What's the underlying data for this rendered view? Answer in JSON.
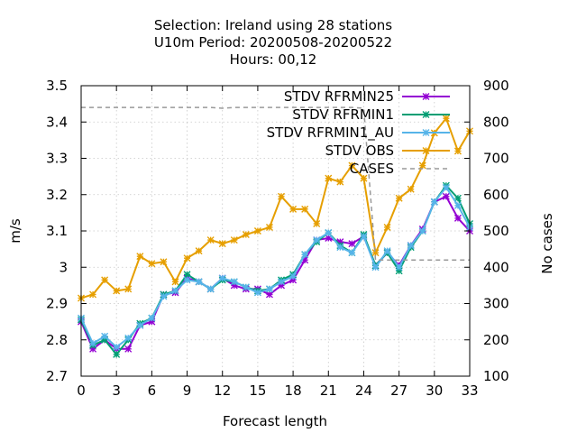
{
  "chart_data": {
    "type": "line",
    "title_lines": [
      "Selection: Ireland using    28 stations",
      "U10m   Period: 20200508-20200522",
      "Hours:  00,12"
    ],
    "xlabel": "Forecast length",
    "ylabel": "m/s",
    "y2label": "No cases",
    "xlim": [
      0,
      33
    ],
    "ylim": [
      2.7,
      3.5
    ],
    "y2lim": [
      100,
      900
    ],
    "x_ticks": [
      0,
      3,
      6,
      9,
      12,
      15,
      18,
      21,
      24,
      27,
      30,
      33
    ],
    "y_ticks": [
      "2.7",
      "2.8",
      "2.9",
      "3",
      "3.1",
      "3.2",
      "3.3",
      "3.4",
      "3.5"
    ],
    "y2_ticks": [
      100,
      200,
      300,
      400,
      500,
      600,
      700,
      800,
      900
    ],
    "grid": true,
    "legend_position": "top-right",
    "x": [
      0,
      1,
      2,
      3,
      4,
      5,
      6,
      7,
      8,
      9,
      10,
      11,
      12,
      13,
      14,
      15,
      16,
      17,
      18,
      19,
      20,
      21,
      22,
      23,
      24,
      25,
      26,
      27,
      28,
      29,
      30,
      31,
      32,
      33
    ],
    "series": [
      {
        "name": "STDV RFRMIN25",
        "color": "#9400d3",
        "marker": "x",
        "axis": "y",
        "values": [
          2.85,
          2.775,
          2.8,
          2.775,
          2.775,
          2.84,
          2.85,
          2.925,
          2.93,
          2.97,
          2.96,
          2.94,
          2.97,
          2.95,
          2.94,
          2.94,
          2.925,
          2.95,
          2.965,
          3.02,
          3.075,
          3.08,
          3.07,
          3.065,
          3.085,
          3.005,
          3.04,
          3.005,
          3.06,
          3.105,
          3.18,
          3.195,
          3.135,
          3.1
        ]
      },
      {
        "name": "STDV RFRMIN1",
        "color": "#009e73",
        "marker": "x",
        "axis": "y",
        "values": [
          2.855,
          2.785,
          2.8,
          2.76,
          2.8,
          2.845,
          2.86,
          2.925,
          2.935,
          2.98,
          2.96,
          2.94,
          2.965,
          2.96,
          2.945,
          2.935,
          2.94,
          2.965,
          2.98,
          3.035,
          3.07,
          3.095,
          3.06,
          3.04,
          3.09,
          3.005,
          3.04,
          2.99,
          3.055,
          3.1,
          3.18,
          3.225,
          3.19,
          3.12
        ]
      },
      {
        "name": "STDV RFRMIN1_AU",
        "color": "#56b4e9",
        "marker": "x",
        "axis": "y",
        "values": [
          2.86,
          2.79,
          2.81,
          2.78,
          2.805,
          2.84,
          2.86,
          2.92,
          2.935,
          2.965,
          2.96,
          2.94,
          2.97,
          2.96,
          2.945,
          2.93,
          2.94,
          2.96,
          2.975,
          3.035,
          3.075,
          3.095,
          3.055,
          3.04,
          3.085,
          3.0,
          3.045,
          3.0,
          3.06,
          3.1,
          3.18,
          3.22,
          3.17,
          3.11
        ]
      },
      {
        "name": "STDV OBS",
        "color": "#e69f00",
        "marker": "x",
        "axis": "y",
        "values": [
          2.915,
          2.925,
          2.965,
          2.935,
          2.94,
          3.03,
          3.01,
          3.015,
          2.96,
          3.025,
          3.045,
          3.075,
          3.065,
          3.075,
          3.09,
          3.1,
          3.11,
          3.195,
          3.16,
          3.16,
          3.12,
          3.245,
          3.235,
          3.28,
          3.245,
          3.04,
          3.11,
          3.19,
          3.215,
          3.28,
          3.37,
          3.41,
          3.32,
          3.375
        ]
      },
      {
        "name": "CASES",
        "color": "#999999",
        "marker": "none",
        "dashed": true,
        "axis": "y2",
        "values": [
          840,
          840,
          840,
          840,
          840,
          840,
          840,
          840,
          840,
          840,
          840,
          840,
          838,
          840,
          840,
          840,
          840,
          840,
          840,
          840,
          840,
          840,
          840,
          840,
          838,
          420,
          420,
          420,
          420,
          420,
          420,
          420,
          420,
          420
        ]
      }
    ]
  }
}
